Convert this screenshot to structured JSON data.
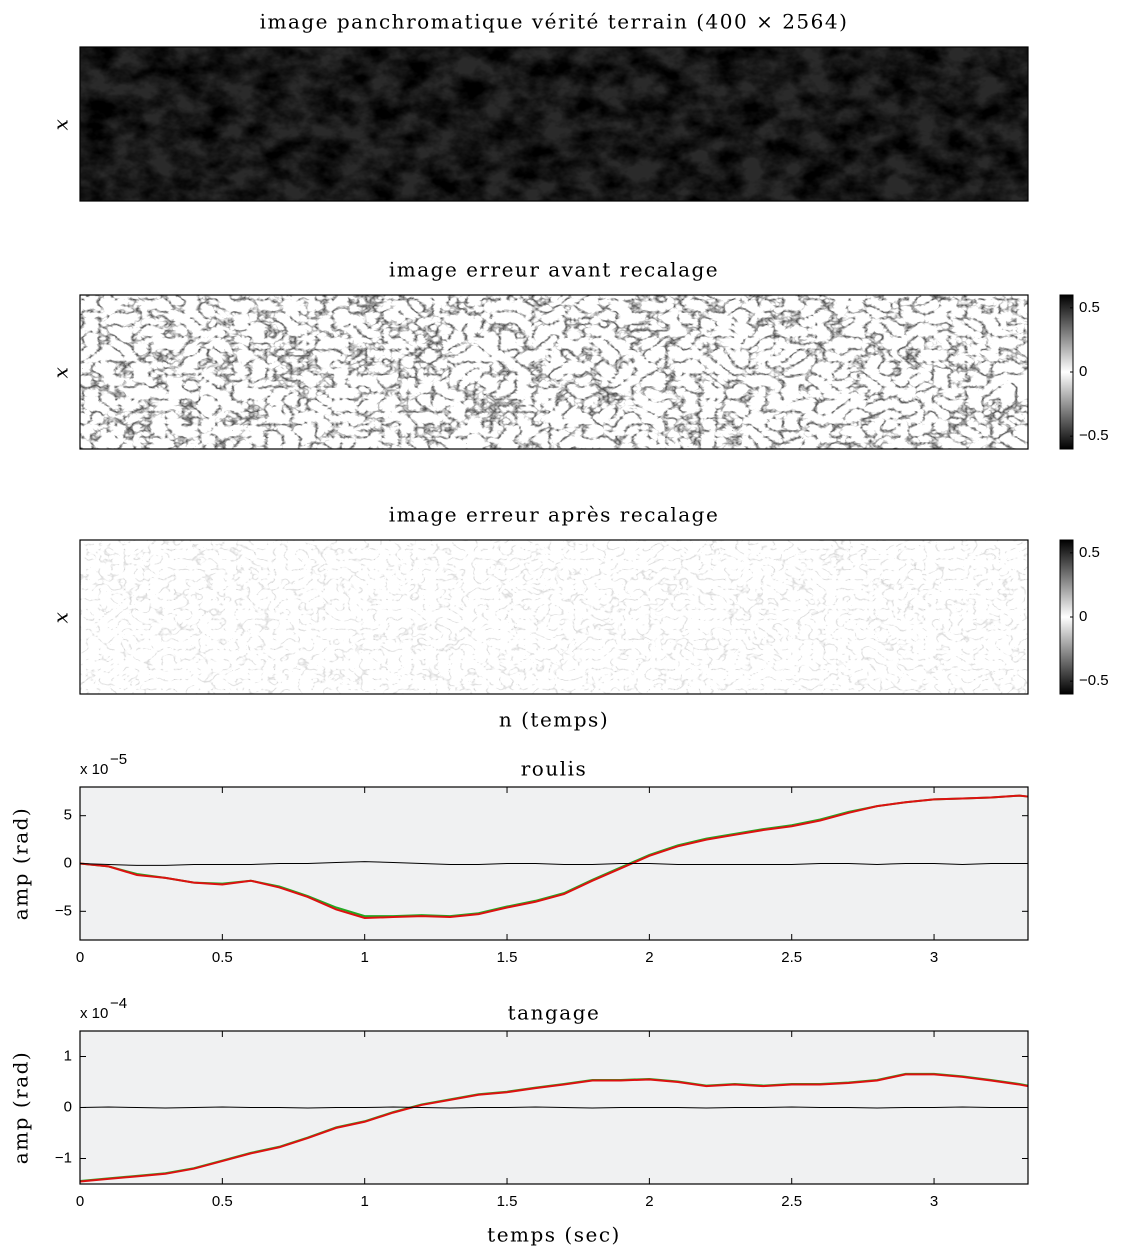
{
  "chart_data": [
    {
      "type": "image",
      "title": "image panchromatique vérité terrain (400 × 2564)",
      "ylabel": "x",
      "texture": "dark"
    },
    {
      "type": "image",
      "title": "image erreur avant recalage",
      "ylabel": "x",
      "texture": "edges",
      "colorbar": {
        "lim": [
          -0.6,
          0.6
        ],
        "ticks": [
          0.5,
          0,
          {
            "value": -0.5,
            "label": "−0.5"
          }
        ],
        "colors": [
          "#000000",
          "#ffffff",
          "#000000"
        ]
      }
    },
    {
      "type": "image",
      "title": "image erreur après recalage",
      "ylabel": "x",
      "xlabel": "n (temps)",
      "texture": "faint",
      "colorbar": {
        "lim": [
          -0.6,
          0.6
        ],
        "ticks": [
          0.5,
          0,
          {
            "value": -0.5,
            "label": "−0.5"
          }
        ],
        "colors": [
          "#000000",
          "#ffffff",
          "#000000"
        ]
      }
    },
    {
      "type": "line",
      "title": "roulis",
      "ylabel": "amp (rad)",
      "scale_label": "x 10",
      "scale_exponent": "−5",
      "background": "#f0f1f2",
      "xlim": [
        0,
        3.33
      ],
      "xticks": [
        0,
        0.5,
        1,
        1.5,
        2,
        2.5,
        3
      ],
      "ylim": [
        -8,
        8
      ],
      "yticks": [
        5,
        0,
        {
          "value": -5,
          "label": "−5"
        }
      ],
      "x": [
        0,
        0.1,
        0.2,
        0.3,
        0.4,
        0.5,
        0.6,
        0.7,
        0.8,
        0.9,
        1.0,
        1.1,
        1.2,
        1.3,
        1.4,
        1.5,
        1.6,
        1.7,
        1.8,
        1.9,
        2.0,
        2.1,
        2.2,
        2.3,
        2.4,
        2.5,
        2.6,
        2.7,
        2.8,
        2.9,
        3.0,
        3.1,
        3.2,
        3.3,
        3.33
      ],
      "series": [
        {
          "color": "#22aa22",
          "values": [
            0,
            -0.3,
            -1.1,
            -1.5,
            -2.0,
            -2.1,
            -1.8,
            -2.4,
            -3.4,
            -4.6,
            -5.5,
            -5.5,
            -5.4,
            -5.5,
            -5.2,
            -4.5,
            -3.9,
            -3.1,
            -1.7,
            -0.4,
            0.9,
            1.9,
            2.6,
            3.1,
            3.6,
            4.0,
            4.6,
            5.4,
            6.0,
            6.4,
            6.7,
            6.8,
            6.9,
            7.1,
            7.0
          ]
        },
        {
          "color": "#dd1111",
          "values": [
            0,
            -0.3,
            -1.2,
            -1.5,
            -2.0,
            -2.2,
            -1.8,
            -2.5,
            -3.5,
            -4.8,
            -5.7,
            -5.6,
            -5.5,
            -5.6,
            -5.3,
            -4.6,
            -4.0,
            -3.2,
            -1.8,
            -0.5,
            0.8,
            1.8,
            2.5,
            3.0,
            3.5,
            3.9,
            4.5,
            5.3,
            6.0,
            6.4,
            6.7,
            6.8,
            6.9,
            7.1,
            7.0
          ]
        },
        {
          "color": "#000000",
          "values": [
            0,
            -0.1,
            -0.2,
            -0.2,
            -0.1,
            -0.1,
            -0.1,
            0,
            0,
            0.1,
            0.2,
            0.1,
            0,
            -0.1,
            -0.1,
            0,
            0,
            -0.1,
            -0.1,
            0,
            0,
            -0.1,
            -0.1,
            -0.1,
            -0.1,
            -0.1,
            0,
            0,
            -0.1,
            0,
            0,
            -0.1,
            0,
            0,
            0
          ]
        }
      ]
    },
    {
      "type": "line",
      "title": "tangage",
      "ylabel": "amp (rad)",
      "xlabel": "temps (sec)",
      "scale_label": "x 10",
      "scale_exponent": "−4",
      "background": "#f0f1f2",
      "xlim": [
        0,
        3.33
      ],
      "xticks": [
        0,
        0.5,
        1,
        1.5,
        2,
        2.5,
        3
      ],
      "ylim": [
        -1.5,
        1.5
      ],
      "yticks": [
        1,
        0,
        {
          "value": -1,
          "label": "−1"
        }
      ],
      "x": [
        0,
        0.1,
        0.2,
        0.3,
        0.4,
        0.5,
        0.6,
        0.7,
        0.8,
        0.9,
        1.0,
        1.1,
        1.2,
        1.3,
        1.4,
        1.5,
        1.6,
        1.7,
        1.8,
        1.9,
        2.0,
        2.1,
        2.2,
        2.3,
        2.4,
        2.5,
        2.6,
        2.7,
        2.8,
        2.9,
        3.0,
        3.1,
        3.2,
        3.3,
        3.33
      ],
      "series": [
        {
          "color": "#22aa22",
          "values": [
            -1.44,
            -1.39,
            -1.34,
            -1.29,
            -1.19,
            -1.04,
            -0.89,
            -0.77,
            -0.59,
            -0.39,
            -0.27,
            -0.09,
            0.06,
            0.16,
            0.26,
            0.31,
            0.39,
            0.46,
            0.54,
            0.54,
            0.56,
            0.51,
            0.43,
            0.46,
            0.43,
            0.46,
            0.46,
            0.49,
            0.54,
            0.66,
            0.66,
            0.61,
            0.54,
            0.46,
            0.43
          ]
        },
        {
          "color": "#dd1111",
          "values": [
            -1.45,
            -1.4,
            -1.35,
            -1.3,
            -1.2,
            -1.05,
            -0.9,
            -0.78,
            -0.6,
            -0.4,
            -0.28,
            -0.1,
            0.05,
            0.15,
            0.25,
            0.3,
            0.38,
            0.45,
            0.53,
            0.53,
            0.55,
            0.5,
            0.42,
            0.45,
            0.42,
            0.45,
            0.45,
            0.48,
            0.53,
            0.65,
            0.65,
            0.6,
            0.53,
            0.45,
            0.42
          ]
        },
        {
          "color": "#000000",
          "values": [
            0,
            0.01,
            0,
            -0.01,
            0,
            0.01,
            0,
            0,
            -0.01,
            0,
            0,
            0.01,
            0,
            -0.01,
            0,
            0,
            0.01,
            0,
            -0.01,
            0,
            0,
            0,
            -0.01,
            0,
            0,
            0.01,
            0,
            0,
            -0.01,
            0,
            0,
            0.01,
            0,
            0,
            0
          ]
        }
      ]
    }
  ]
}
